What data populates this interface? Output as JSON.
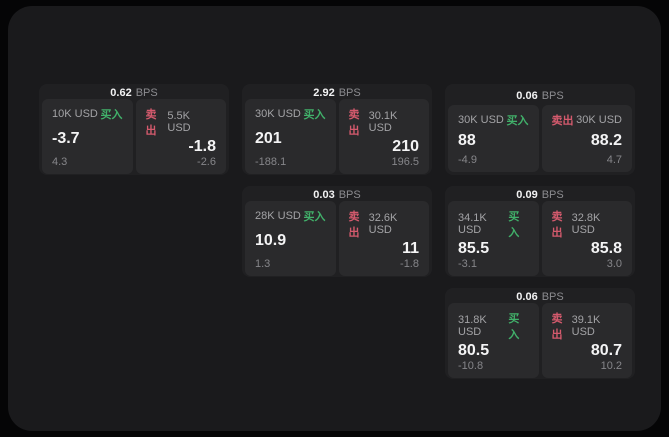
{
  "labels": {
    "bps_unit": "BPS",
    "buy": "买入",
    "sell": "卖出"
  },
  "colors": {
    "page_background": "#050506",
    "surface": "#1a1a1c",
    "card": "#202022",
    "panel": "#2a2a2c",
    "buy_accent": "#41b06a",
    "sell_accent": "#d45a6d",
    "primary_text": "#f4f4f5",
    "muted_text": "#8c8c90"
  },
  "cards": [
    {
      "bps": "0.62",
      "buy": {
        "amount": "10K USD",
        "price": "-3.7",
        "change": "4.3"
      },
      "sell": {
        "amount": "5.5K USD",
        "price": "-1.8",
        "change": "-2.6"
      }
    },
    {
      "bps": "2.92",
      "buy": {
        "amount": "30K USD",
        "price": "201",
        "change": "-188.1"
      },
      "sell": {
        "amount": "30.1K USD",
        "price": "210",
        "change": "196.5"
      }
    },
    {
      "bps": "0.06",
      "buy": {
        "amount": "30K USD",
        "price": "88",
        "change": "-4.9"
      },
      "sell": {
        "amount": "30K USD",
        "price": "88.2",
        "change": "4.7"
      }
    },
    {
      "bps": "0.03",
      "buy": {
        "amount": "28K USD",
        "price": "10.9",
        "change": "1.3"
      },
      "sell": {
        "amount": "32.6K USD",
        "price": "11",
        "change": "-1.8"
      }
    },
    {
      "bps": "0.09",
      "buy": {
        "amount": "34.1K USD",
        "price": "85.5",
        "change": "-3.1"
      },
      "sell": {
        "amount": "32.8K USD",
        "price": "85.8",
        "change": "3.0"
      }
    },
    {
      "bps": "0.06",
      "buy": {
        "amount": "31.8K USD",
        "price": "80.5",
        "change": "-10.8"
      },
      "sell": {
        "amount": "39.1K USD",
        "price": "80.7",
        "change": "10.2"
      }
    }
  ]
}
